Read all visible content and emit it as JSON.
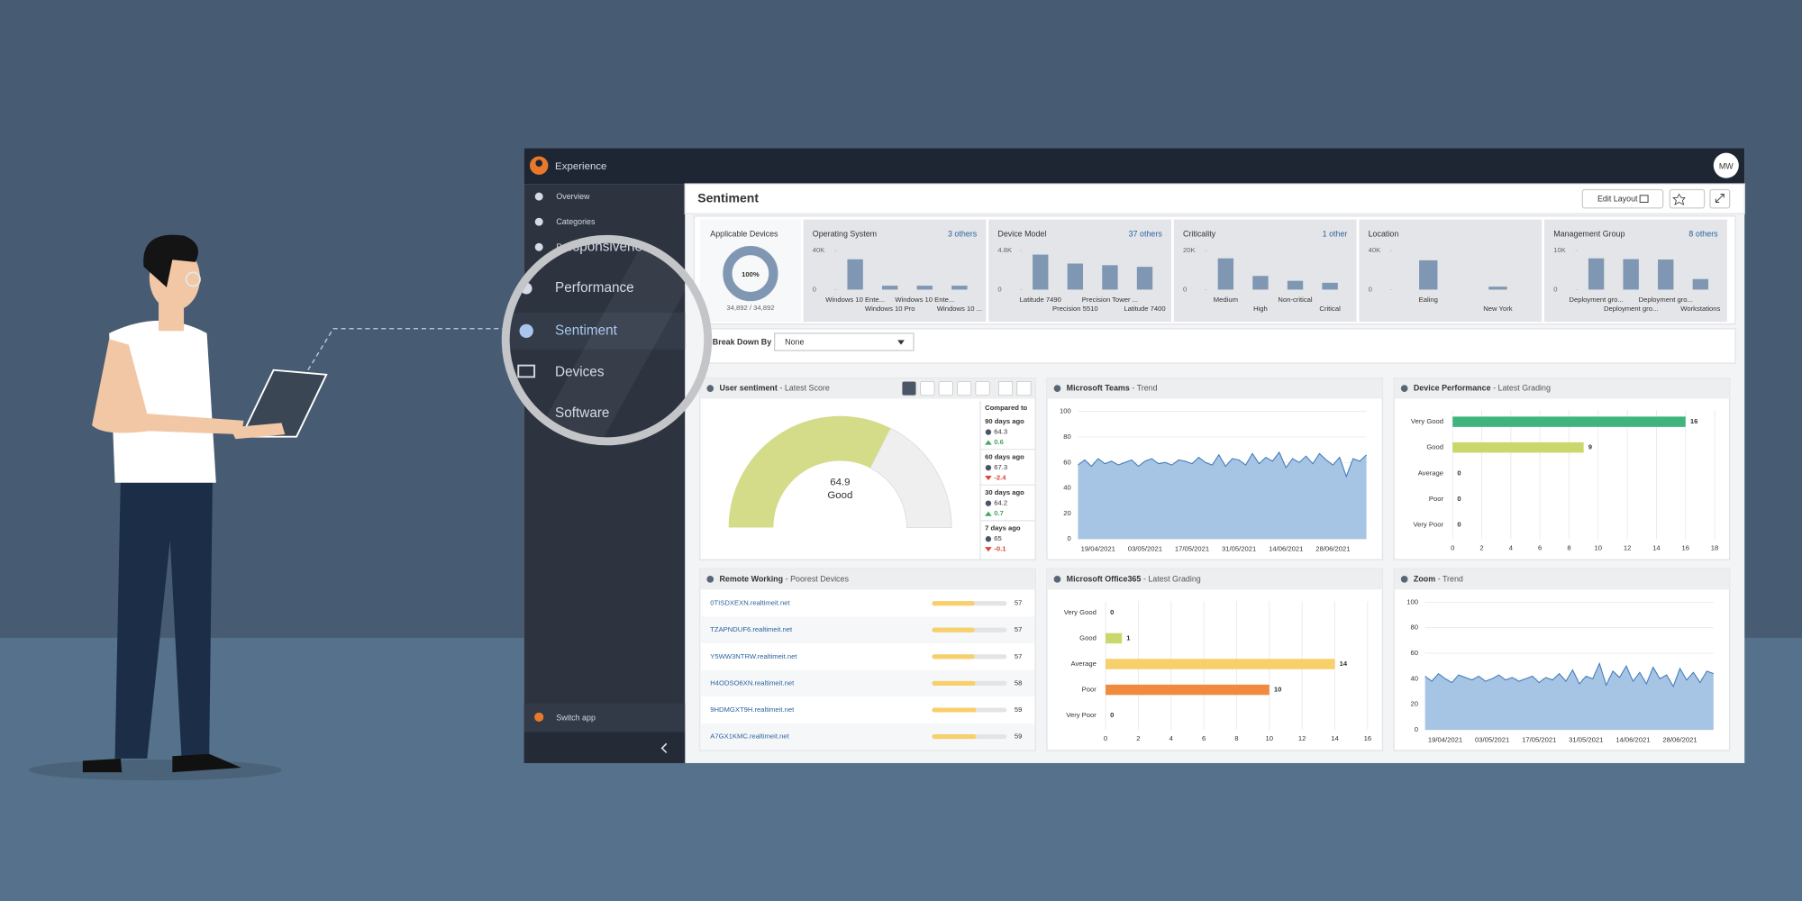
{
  "app": {
    "name": "Experience",
    "user": "MW"
  },
  "sidebar": {
    "items": [
      "Overview",
      "Categories",
      "Responsiveness",
      "Performance",
      "Sentiment",
      "Devices",
      "Software"
    ],
    "switch_app": "Switch app"
  },
  "page": {
    "title": "Sentiment",
    "edit_layout": "Edit Layout"
  },
  "applicable": {
    "title": "Applicable Devices",
    "percent": 100,
    "percent_label": "100%",
    "count": "34,892 / 34,892"
  },
  "filters": [
    {
      "title": "Operating System",
      "others": "3 others",
      "ylim": [
        0,
        40000
      ],
      "yticks": [
        0,
        {
          "value": 40000,
          "label": "40K"
        }
      ],
      "categories": [
        "Windows 10 Ente...",
        "Windows 10 Pro",
        "Windows 10 Ente...",
        "Windows 10 ..."
      ],
      "values": [
        31000,
        4000,
        4000,
        4000
      ]
    },
    {
      "title": "Device Model",
      "others": "37 others",
      "ylim": [
        0,
        4800
      ],
      "yticks": [
        0,
        {
          "value": 4800,
          "label": "4.8K"
        }
      ],
      "categories": [
        "Latitude 7490",
        "Precision 5510",
        "Precision Tower ...",
        "Latitude 7400"
      ],
      "values": [
        4300,
        3200,
        3000,
        2800
      ]
    },
    {
      "title": "Criticality",
      "others": "1 other",
      "ylim": [
        0,
        20000
      ],
      "yticks": [
        0,
        {
          "value": 20000,
          "label": "20K"
        }
      ],
      "categories": [
        "Medium",
        "High",
        "Non-critical",
        "Critical"
      ],
      "values": [
        16000,
        7000,
        4500,
        3500
      ]
    },
    {
      "title": "Location",
      "others": null,
      "ylim": [
        0,
        40000
      ],
      "yticks": [
        0,
        {
          "value": 40000,
          "label": "40K"
        }
      ],
      "categories": [
        "Ealing",
        "New York"
      ],
      "values": [
        30000,
        3000
      ]
    },
    {
      "title": "Management Group",
      "others": "8 others",
      "ylim": [
        0,
        10000
      ],
      "yticks": [
        0,
        {
          "value": 10000,
          "label": "10K"
        }
      ],
      "categories": [
        "Deployment gro...",
        "Deployment gro...",
        "Deployment gro...",
        "Workstations"
      ],
      "values": [
        8000,
        7800,
        7700,
        2700
      ]
    }
  ],
  "breakdown": {
    "label": "Break Down By",
    "value": "None"
  },
  "user_sentiment": {
    "title": "User sentiment",
    "subtitle": "- Latest Score",
    "value": 64.9,
    "grade": "Good",
    "range": [
      0,
      100
    ],
    "compared_title": "Compared to",
    "compared": [
      {
        "label": "90 days ago",
        "value": 64.3,
        "delta": 0.6
      },
      {
        "label": "60 days ago",
        "value": 67.3,
        "delta": -2.4
      },
      {
        "label": "30 days ago",
        "value": 64.2,
        "delta": 0.7
      },
      {
        "label": "7 days ago",
        "value": 65,
        "delta": -0.1
      }
    ]
  },
  "teams": {
    "title": "Microsoft Teams",
    "subtitle": "- Trend",
    "color": "#3d78b8",
    "ylim": [
      0,
      100
    ],
    "yticks": [
      0,
      20,
      40,
      60,
      80,
      100
    ],
    "categories": [
      null,
      null,
      null,
      "19/04/2021",
      null,
      null,
      null,
      null,
      null,
      null,
      "03/05/2021",
      null,
      null,
      null,
      null,
      null,
      null,
      "17/05/2021",
      null,
      null,
      null,
      null,
      null,
      null,
      "31/05/2021",
      null,
      null,
      null,
      null,
      null,
      null,
      "14/06/2021",
      null,
      null,
      null,
      null,
      null,
      null,
      "28/06/2021",
      null,
      null,
      null,
      null,
      null
    ],
    "values": [
      58,
      62,
      57,
      63,
      59,
      61,
      58,
      60,
      62,
      57,
      61,
      63,
      59,
      60,
      58,
      62,
      61,
      59,
      64,
      60,
      58,
      66,
      57,
      63,
      62,
      58,
      67,
      59,
      64,
      61,
      68,
      56,
      63,
      60,
      65,
      59,
      67,
      62,
      58,
      64,
      49,
      63,
      61,
      66
    ]
  },
  "device_performance": {
    "title": "Device Performance",
    "subtitle": "- Latest Grading",
    "categories": [
      "Very Good",
      "Good",
      "Average",
      "Poor",
      "Very Poor"
    ],
    "values": [
      16,
      9,
      0,
      0,
      0
    ],
    "colors": [
      "#3fb47c",
      "#c9d76b",
      "#f7cf6b",
      "#f08a3e",
      "#f08a3e"
    ],
    "xlim": [
      0,
      18
    ],
    "xticks": [
      0,
      2,
      4,
      6,
      8,
      10,
      12,
      14,
      16,
      18
    ]
  },
  "remote_working": {
    "title": "Remote Working",
    "subtitle": "- Poorest Devices",
    "xlim": [
      0,
      100
    ],
    "rows": [
      {
        "name": "0TISDXEXN.realtimeit.net",
        "value": 57
      },
      {
        "name": "TZAPNDUF6.realtimeit.net",
        "value": 57
      },
      {
        "name": "Y5WW3NTRW.realtimeit.net",
        "value": 57
      },
      {
        "name": "H4ODSO6XN.realtimeit.net",
        "value": 58
      },
      {
        "name": "9HDMGXT9H.realtimeit.net",
        "value": 59
      },
      {
        "name": "A7GX1KMC.realtimeit.net",
        "value": 59
      }
    ]
  },
  "office365": {
    "title": "Microsoft Office365",
    "subtitle": "- Latest Grading",
    "categories": [
      "Very Good",
      "Good",
      "Average",
      "Poor",
      "Very Poor"
    ],
    "values": [
      0,
      1,
      14,
      10,
      0
    ],
    "colors": [
      "#3fb47c",
      "#c9d76b",
      "#f7cf6b",
      "#f08a3e",
      "#f08a3e"
    ],
    "xlim": [
      0,
      16
    ],
    "xticks": [
      0,
      2,
      4,
      6,
      8,
      10,
      12,
      14,
      16
    ]
  },
  "zoom": {
    "title": "Zoom",
    "subtitle": "- Trend",
    "color": "#3d78b8",
    "ylim": [
      0,
      100
    ],
    "yticks": [
      0,
      20,
      40,
      60,
      80,
      100
    ],
    "categories": [
      null,
      null,
      null,
      "19/04/2021",
      null,
      null,
      null,
      null,
      null,
      null,
      "03/05/2021",
      null,
      null,
      null,
      null,
      null,
      null,
      "17/05/2021",
      null,
      null,
      null,
      null,
      null,
      null,
      "31/05/2021",
      null,
      null,
      null,
      null,
      null,
      null,
      "14/06/2021",
      null,
      null,
      null,
      null,
      null,
      null,
      "28/06/2021",
      null,
      null,
      null,
      null,
      null
    ],
    "values": [
      42,
      38,
      44,
      40,
      37,
      43,
      41,
      39,
      42,
      38,
      40,
      43,
      39,
      41,
      38,
      40,
      42,
      37,
      41,
      39,
      44,
      38,
      47,
      36,
      42,
      40,
      52,
      35,
      46,
      41,
      50,
      38,
      45,
      36,
      49,
      40,
      43,
      34,
      48,
      39,
      45,
      37,
      46,
      44
    ]
  }
}
